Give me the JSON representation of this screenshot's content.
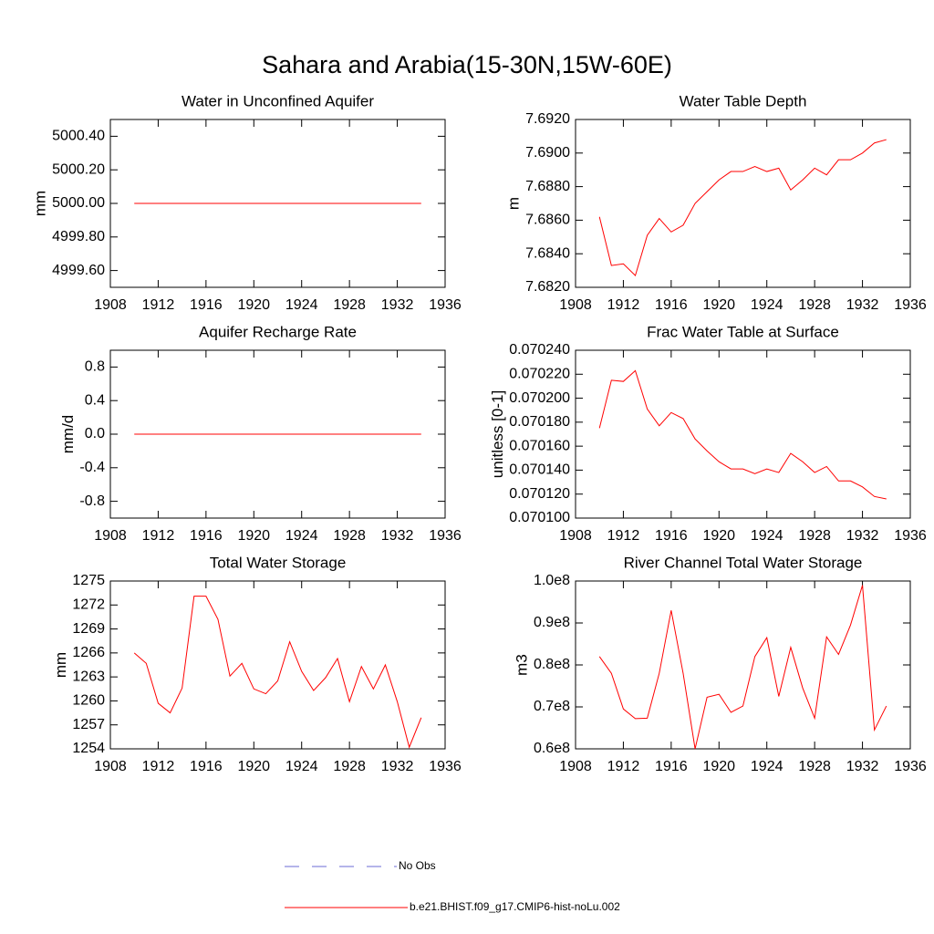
{
  "title": "Sahara and Arabia(15-30N,15W-60E)",
  "legend": [
    {
      "name": "No Obs",
      "color": "#6b6bd6",
      "dashed": true
    },
    {
      "name": "b.e21.BHIST.f09_g17.CMIP6-hist-noLu.002",
      "color": "#ff0000",
      "dashed": false
    }
  ],
  "chart_data": [
    {
      "type": "line",
      "title": "Water in Unconfined Aquifer",
      "ylabel": "mm",
      "color": "#ff0000",
      "x": [
        1910,
        1911,
        1912,
        1913,
        1914,
        1915,
        1916,
        1917,
        1918,
        1919,
        1920,
        1921,
        1922,
        1923,
        1924,
        1925,
        1926,
        1927,
        1928,
        1929,
        1930,
        1931,
        1932,
        1933,
        1934
      ],
      "values": [
        5000,
        5000,
        5000,
        5000,
        5000,
        5000,
        5000,
        5000,
        5000,
        5000,
        5000,
        5000,
        5000,
        5000,
        5000,
        5000,
        5000,
        5000,
        5000,
        5000,
        5000,
        5000,
        5000,
        5000,
        5000
      ],
      "xlim": [
        1908,
        1936
      ],
      "xticks": [
        1908,
        1912,
        1916,
        1920,
        1924,
        1928,
        1932,
        1936
      ],
      "ylim": [
        4999.5,
        5000.5
      ],
      "yticks": [
        {
          "value": 4999.6,
          "label": "4999.60"
        },
        {
          "value": 4999.8,
          "label": "4999.80"
        },
        {
          "value": 5000,
          "label": "5000.00"
        },
        {
          "value": 5000.2,
          "label": "5000.20"
        },
        {
          "value": 5000.4,
          "label": "5000.40"
        }
      ]
    },
    {
      "type": "line",
      "title": "Water Table Depth",
      "ylabel": "m",
      "color": "#ff0000",
      "x": [
        1910,
        1911,
        1912,
        1913,
        1914,
        1915,
        1916,
        1917,
        1918,
        1919,
        1920,
        1921,
        1922,
        1923,
        1924,
        1925,
        1926,
        1927,
        1928,
        1929,
        1930,
        1931,
        1932,
        1933,
        1934
      ],
      "values": [
        7.6862,
        7.6833,
        7.6834,
        7.6827,
        7.6851,
        7.6861,
        7.6853,
        7.6857,
        7.687,
        7.6877,
        7.6884,
        7.6889,
        7.6889,
        7.6892,
        7.6889,
        7.6891,
        7.6878,
        7.6884,
        7.6891,
        7.6887,
        7.6896,
        7.6896,
        7.69,
        7.6906,
        7.6908
      ],
      "xlim": [
        1908,
        1936
      ],
      "xticks": [
        1908,
        1912,
        1916,
        1920,
        1924,
        1928,
        1932,
        1936
      ],
      "ylim": [
        7.682,
        7.692
      ],
      "yticks": [
        {
          "value": 7.682,
          "label": "7.6820"
        },
        {
          "value": 7.684,
          "label": "7.6840"
        },
        {
          "value": 7.686,
          "label": "7.6860"
        },
        {
          "value": 7.688,
          "label": "7.6880"
        },
        {
          "value": 7.69,
          "label": "7.6900"
        },
        {
          "value": 7.692,
          "label": "7.6920"
        }
      ]
    },
    {
      "type": "line",
      "title": "Aquifer Recharge Rate",
      "ylabel": "mm/d",
      "color": "#ff0000",
      "x": [
        1910,
        1911,
        1912,
        1913,
        1914,
        1915,
        1916,
        1917,
        1918,
        1919,
        1920,
        1921,
        1922,
        1923,
        1924,
        1925,
        1926,
        1927,
        1928,
        1929,
        1930,
        1931,
        1932,
        1933,
        1934
      ],
      "values": [
        0,
        0,
        0,
        0,
        0,
        0,
        0,
        0,
        0,
        0,
        0,
        0,
        0,
        0,
        0,
        0,
        0,
        0,
        0,
        0,
        0,
        0,
        0,
        0,
        0
      ],
      "xlim": [
        1908,
        1936
      ],
      "xticks": [
        1908,
        1912,
        1916,
        1920,
        1924,
        1928,
        1932,
        1936
      ],
      "ylim": [
        -1,
        1
      ],
      "yticks": [
        -0.8,
        -0.4,
        {
          "value": 0,
          "label": "0.0"
        },
        0.4,
        0.8
      ]
    },
    {
      "type": "line",
      "title": "Frac Water Table at Surface",
      "ylabel": "unitless [0-1]",
      "color": "#ff0000",
      "x": [
        1910,
        1911,
        1912,
        1913,
        1914,
        1915,
        1916,
        1917,
        1918,
        1919,
        1920,
        1921,
        1922,
        1923,
        1924,
        1925,
        1926,
        1927,
        1928,
        1929,
        1930,
        1931,
        1932,
        1933,
        1934
      ],
      "values": [
        0.070175,
        0.070215,
        0.070214,
        0.070223,
        0.070191,
        0.070177,
        0.070188,
        0.070183,
        0.070166,
        0.070156,
        0.070147,
        0.070141,
        0.070141,
        0.070137,
        0.070141,
        0.070138,
        0.070154,
        0.070147,
        0.070138,
        0.070143,
        0.070131,
        0.070131,
        0.070126,
        0.070118,
        0.070116
      ],
      "xlim": [
        1908,
        1936
      ],
      "xticks": [
        1908,
        1912,
        1916,
        1920,
        1924,
        1928,
        1932,
        1936
      ],
      "ylim": [
        0.0701,
        0.07024
      ],
      "yticks": [
        {
          "value": 0.0701,
          "label": "0.070100"
        },
        {
          "value": 0.07012,
          "label": "0.070120"
        },
        {
          "value": 0.07014,
          "label": "0.070140"
        },
        {
          "value": 0.07016,
          "label": "0.070160"
        },
        {
          "value": 0.07018,
          "label": "0.070180"
        },
        {
          "value": 0.0702,
          "label": "0.070200"
        },
        {
          "value": 0.07022,
          "label": "0.070220"
        },
        {
          "value": 0.07024,
          "label": "0.070240"
        }
      ]
    },
    {
      "type": "line",
      "title": "Total Water Storage",
      "ylabel": "mm",
      "color": "#ff0000",
      "x": [
        1910,
        1911,
        1912,
        1913,
        1914,
        1915,
        1916,
        1917,
        1918,
        1919,
        1920,
        1921,
        1922,
        1923,
        1924,
        1925,
        1926,
        1927,
        1928,
        1929,
        1930,
        1931,
        1932,
        1933,
        1934
      ],
      "values": [
        1266,
        1264.7,
        1259.7,
        1258.5,
        1261.6,
        1273.1,
        1273.1,
        1270.2,
        1263.1,
        1264.7,
        1261.5,
        1260.9,
        1262.5,
        1267.4,
        1263.7,
        1261.3,
        1262.9,
        1265.3,
        1259.9,
        1264.3,
        1261.5,
        1264.5,
        1259.9,
        1254.2,
        1257.9
      ],
      "xlim": [
        1908,
        1936
      ],
      "xticks": [
        1908,
        1912,
        1916,
        1920,
        1924,
        1928,
        1932,
        1936
      ],
      "ylim": [
        1254,
        1275
      ],
      "yticks": [
        1254,
        1257,
        1260,
        1263,
        1266,
        1269,
        1272,
        1275
      ]
    },
    {
      "type": "line",
      "title": "River Channel Total Water Storage",
      "ylabel": "m3",
      "color": "#ff0000",
      "x": [
        1910,
        1911,
        1912,
        1913,
        1914,
        1915,
        1916,
        1917,
        1918,
        1919,
        1920,
        1921,
        1922,
        1923,
        1924,
        1925,
        1926,
        1927,
        1928,
        1929,
        1930,
        1931,
        1932,
        1933,
        1934
      ],
      "values": [
        82000000,
        78000000,
        69500000,
        67200000,
        67300000,
        78000000,
        93000000,
        78000000,
        60000000,
        72300000,
        73000000,
        68700000,
        70200000,
        82000000,
        86500000,
        72500000,
        84200000,
        74500000,
        67300000,
        86700000,
        82500000,
        89500000,
        99000000,
        64500000,
        70200000
      ],
      "xlim": [
        1908,
        1936
      ],
      "xticks": [
        1908,
        1912,
        1916,
        1920,
        1924,
        1928,
        1932,
        1936
      ],
      "ylim": [
        60000000,
        100000000
      ],
      "yticks": [
        {
          "value": 60000000,
          "label": "0.6e8"
        },
        {
          "value": 70000000,
          "label": "0.7e8"
        },
        {
          "value": 80000000,
          "label": "0.8e8"
        },
        {
          "value": 90000000,
          "label": "0.9e8"
        },
        {
          "value": 100000000,
          "label": "1.0e8"
        }
      ]
    }
  ]
}
